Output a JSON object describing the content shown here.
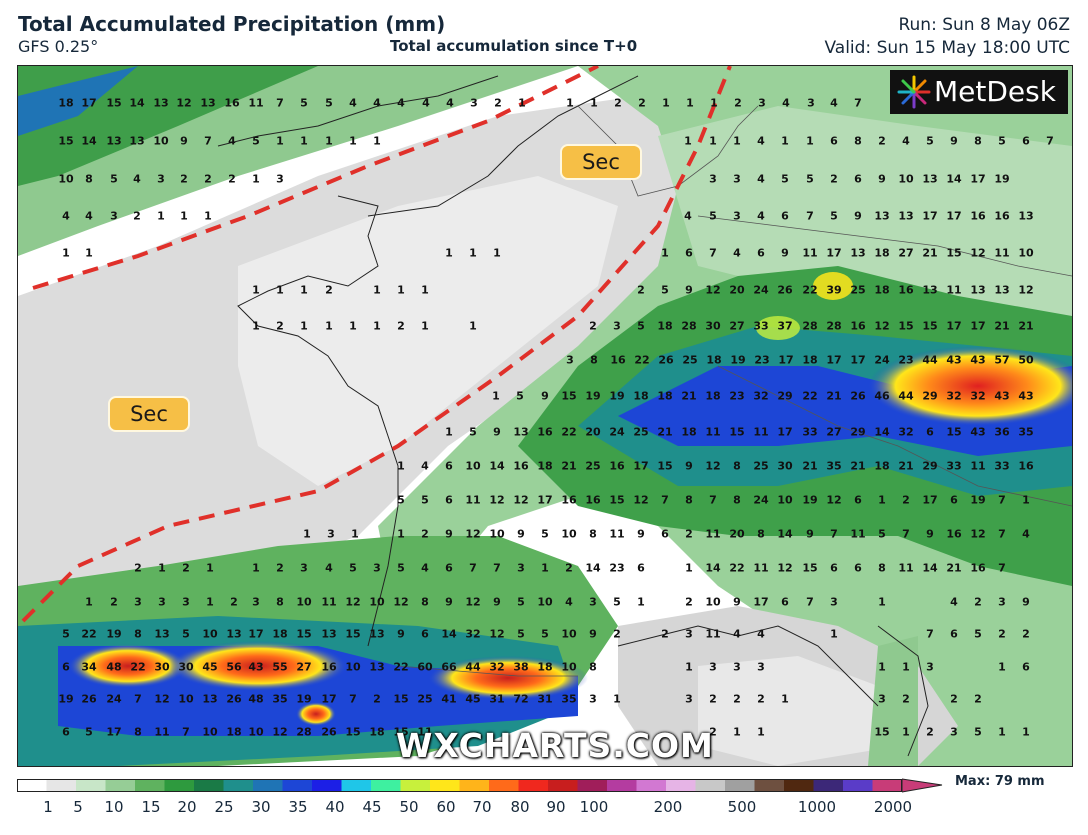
{
  "header": {
    "title": "Total Accumulated Precipitation (mm)",
    "model": "GFS 0.25°",
    "subtitle": "Total accumulation since T+0",
    "run": "Run: Sun 8 May 06Z",
    "valid": "Valid: Sun 15 May 18:00 UTC"
  },
  "logo": {
    "text": "MetDesk"
  },
  "watermark": "WXCHARTS.COM",
  "labels": {
    "sec_north": "Sec",
    "sec_west": "Sec"
  },
  "colorbar": {
    "ticks": [
      "1",
      "5",
      "10",
      "15",
      "20",
      "25",
      "30",
      "35",
      "40",
      "45",
      "50",
      "60",
      "70",
      "80",
      "90",
      "100",
      "200",
      "500",
      "1000",
      "2000"
    ],
    "max_label": "Max: 79 mm",
    "colors": [
      "#ffffff",
      "#e6e6e6",
      "#c8e6c8",
      "#96cd96",
      "#5fb25f",
      "#2e9a3e",
      "#1a7a46",
      "#1f8f8c",
      "#1f74b5",
      "#1d46d6",
      "#1c1fe6",
      "#1fc6e8",
      "#3ef0a0",
      "#c8f03c",
      "#ffe61a",
      "#ffb41a",
      "#ff6a1a",
      "#f0281e",
      "#c81e1e",
      "#a01e5a",
      "#b43ca0",
      "#d278d2",
      "#e6b4e6",
      "#c8c8c8",
      "#a0a0a0",
      "#6e5040",
      "#502810",
      "#3c2878",
      "#5a3cc8",
      "#c83c78"
    ]
  },
  "map_values": [
    [
      "18",
      "17",
      "15",
      "14",
      "13",
      "12",
      "13",
      "16",
      "11",
      "7",
      "5",
      "5",
      "4",
      "4",
      "4",
      "4",
      "4",
      "3",
      "2",
      "1",
      "1",
      "1",
      "2",
      "2",
      "1",
      "1",
      "1",
      "2",
      "3",
      "4",
      "3",
      "4",
      "7"
    ],
    [
      "15",
      "14",
      "13",
      "13",
      "10",
      "9",
      "7",
      "4",
      "5",
      "1",
      "1",
      "1",
      "1",
      "1",
      "1",
      "1",
      "1",
      "4",
      "1",
      "1",
      "6",
      "8",
      "2",
      "4",
      "5",
      "9",
      "8",
      "5",
      "6",
      "7"
    ],
    [
      "10",
      "8",
      "5",
      "4",
      "3",
      "2",
      "2",
      "2",
      "1",
      "3",
      "3",
      "3",
      "4",
      "5",
      "5",
      "2",
      "6",
      "9",
      "10",
      "13",
      "14",
      "17",
      "19"
    ],
    [
      "4",
      "4",
      "3",
      "2",
      "1",
      "1",
      "1",
      "4",
      "5",
      "3",
      "4",
      "6",
      "7",
      "5",
      "9",
      "13",
      "13",
      "17",
      "17",
      "16",
      "16",
      "13"
    ],
    [
      "1",
      "1",
      "1",
      "1",
      "1",
      "1",
      "6",
      "7",
      "4",
      "6",
      "9",
      "11",
      "17",
      "13",
      "18",
      "27",
      "21",
      "15",
      "12",
      "11",
      "10"
    ],
    [
      "1",
      "1",
      "1",
      "2",
      "1",
      "1",
      "1",
      "2",
      "5",
      "9",
      "12",
      "20",
      "24",
      "26",
      "22",
      "39",
      "25",
      "18",
      "16",
      "13",
      "11",
      "13",
      "13",
      "12"
    ],
    [
      "1",
      "2",
      "1",
      "1",
      "1",
      "1",
      "2",
      "1",
      "1",
      "2",
      "3",
      "5",
      "18",
      "28",
      "30",
      "27",
      "33",
      "37",
      "28",
      "28",
      "16",
      "12",
      "15",
      "15",
      "17",
      "17",
      "21",
      "21"
    ],
    [
      "3",
      "8",
      "16",
      "22",
      "26",
      "25",
      "18",
      "19",
      "23",
      "17",
      "18",
      "17",
      "17",
      "24",
      "23",
      "44",
      "43",
      "43",
      "57",
      "50"
    ],
    [
      "1",
      "5",
      "9",
      "15",
      "19",
      "19",
      "18",
      "18",
      "21",
      "18",
      "23",
      "32",
      "29",
      "22",
      "21",
      "26",
      "46",
      "44",
      "29",
      "32",
      "32",
      "43",
      "43"
    ],
    [
      "1",
      "5",
      "9",
      "13",
      "16",
      "22",
      "20",
      "24",
      "25",
      "21",
      "18",
      "11",
      "15",
      "11",
      "17",
      "33",
      "27",
      "29",
      "14",
      "32",
      "6",
      "15",
      "43",
      "36",
      "35"
    ],
    [
      "1",
      "4",
      "6",
      "10",
      "14",
      "16",
      "18",
      "21",
      "25",
      "16",
      "17",
      "15",
      "9",
      "12",
      "8",
      "25",
      "30",
      "21",
      "35",
      "21",
      "18",
      "21",
      "29",
      "33",
      "11",
      "33",
      "16"
    ],
    [
      "5",
      "5",
      "6",
      "11",
      "12",
      "12",
      "17",
      "16",
      "16",
      "15",
      "12",
      "7",
      "8",
      "7",
      "8",
      "24",
      "10",
      "19",
      "12",
      "6",
      "1",
      "2",
      "17",
      "6",
      "19",
      "7",
      "1"
    ],
    [
      "1",
      "3",
      "1",
      "1",
      "2",
      "9",
      "12",
      "10",
      "9",
      "5",
      "10",
      "8",
      "11",
      "9",
      "6",
      "2",
      "11",
      "20",
      "8",
      "14",
      "9",
      "7",
      "11",
      "5",
      "7",
      "9",
      "16",
      "12",
      "7",
      "4"
    ],
    [
      "2",
      "1",
      "2",
      "1",
      "1",
      "2",
      "3",
      "4",
      "5",
      "3",
      "5",
      "4",
      "6",
      "7",
      "7",
      "3",
      "1",
      "2",
      "14",
      "23",
      "6",
      "1",
      "14",
      "22",
      "11",
      "12",
      "15",
      "6",
      "6",
      "8",
      "11",
      "14",
      "21",
      "16",
      "7"
    ],
    [
      "1",
      "2",
      "3",
      "3",
      "3",
      "1",
      "2",
      "3",
      "8",
      "10",
      "11",
      "12",
      "10",
      "12",
      "8",
      "9",
      "12",
      "9",
      "5",
      "10",
      "4",
      "3",
      "5",
      "1",
      "2",
      "10",
      "9",
      "17",
      "6",
      "7",
      "3",
      "1",
      "4",
      "2",
      "3",
      "9"
    ],
    [
      "5",
      "22",
      "19",
      "8",
      "13",
      "5",
      "10",
      "13",
      "17",
      "18",
      "15",
      "13",
      "15",
      "13",
      "9",
      "6",
      "14",
      "32",
      "12",
      "5",
      "5",
      "10",
      "9",
      "2",
      "2",
      "3",
      "11",
      "4",
      "4",
      "1",
      "7",
      "6",
      "5",
      "2",
      "2"
    ],
    [
      "6",
      "34",
      "48",
      "22",
      "30",
      "30",
      "45",
      "56",
      "43",
      "55",
      "27",
      "16",
      "10",
      "13",
      "22",
      "60",
      "66",
      "44",
      "32",
      "38",
      "18",
      "10",
      "8",
      "1",
      "3",
      "3",
      "3",
      "1",
      "1",
      "3",
      "1",
      "6"
    ],
    [
      "19",
      "26",
      "24",
      "7",
      "12",
      "10",
      "13",
      "26",
      "48",
      "35",
      "19",
      "17",
      "7",
      "2",
      "15",
      "25",
      "41",
      "45",
      "31",
      "72",
      "31",
      "35",
      "3",
      "1",
      "3",
      "2",
      "2",
      "2",
      "1",
      "3",
      "2",
      "2",
      "2"
    ],
    [
      "6",
      "5",
      "17",
      "8",
      "11",
      "7",
      "10",
      "18",
      "10",
      "12",
      "28",
      "26",
      "15",
      "18",
      "15",
      "11",
      "2",
      "1",
      "1",
      "15",
      "1",
      "2",
      "3",
      "5",
      "1",
      "1"
    ]
  ]
}
